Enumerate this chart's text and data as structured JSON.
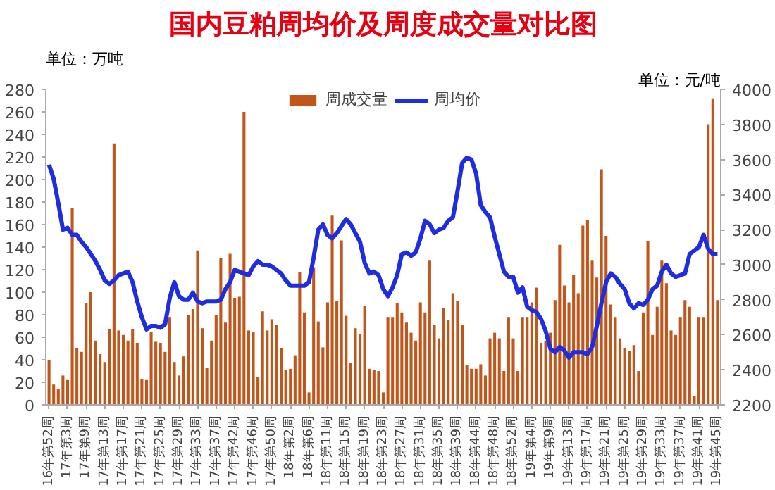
{
  "chart_data": {
    "type": "bar",
    "title": "国内豆粕周均价及周度成交量对比图",
    "ylabel": "单位：万吨",
    "y2label": "单位：元/吨",
    "categories": [
      "16年第52周",
      null,
      null,
      null,
      "17年第3周",
      null,
      null,
      null,
      "17年第9周",
      null,
      null,
      null,
      "17年第13周",
      null,
      null,
      null,
      "17年第17周",
      null,
      null,
      null,
      "17年第21周",
      null,
      null,
      null,
      "17年第25周",
      null,
      null,
      null,
      "17年第29周",
      null,
      null,
      null,
      "17年第33周",
      null,
      null,
      null,
      "17年第37周",
      null,
      null,
      null,
      "17年第42周",
      null,
      null,
      null,
      "17年第46周",
      null,
      null,
      null,
      "17年第50周",
      null,
      null,
      null,
      "18年第2周",
      null,
      null,
      null,
      "18年第6周",
      null,
      null,
      null,
      "18年第11周",
      null,
      null,
      null,
      "18年第15周",
      null,
      null,
      null,
      "18年第19周",
      null,
      null,
      null,
      "18年第23周",
      null,
      null,
      null,
      "18年第27周",
      null,
      null,
      null,
      "18年第31周",
      null,
      null,
      null,
      "18年第35周",
      null,
      null,
      null,
      "18年第39周",
      null,
      null,
      null,
      "18年第44周",
      null,
      null,
      null,
      "18年第48周",
      null,
      null,
      null,
      "18年第52周",
      null,
      null,
      null,
      "19年第4周",
      null,
      null,
      null,
      "19年第9周",
      null,
      null,
      null,
      "19年第13周",
      null,
      null,
      null,
      "19年第17周",
      null,
      null,
      null,
      "19年第21周",
      null,
      null,
      null,
      "19年第25周",
      null,
      null,
      null,
      "19年第29周",
      null,
      null,
      null,
      "19年第33周",
      null,
      null,
      null,
      "19年第37周",
      null,
      null,
      null,
      "19年第41周",
      null,
      null,
      null,
      "19年第45周"
    ],
    "series": [
      {
        "name": "周成交量",
        "color": "#c0561a",
        "values": [
          40,
          18,
          14,
          26,
          22,
          175,
          50,
          47,
          90,
          100,
          57,
          45,
          38,
          67,
          232,
          66,
          62,
          57,
          67,
          55,
          23,
          22,
          65,
          56,
          55,
          47,
          78,
          38,
          26,
          43,
          80,
          85,
          137,
          68,
          33,
          57,
          80,
          130,
          73,
          134,
          95,
          96,
          260,
          66,
          65,
          25,
          83,
          66,
          76,
          71,
          50,
          31,
          32,
          44,
          118,
          82,
          11,
          122,
          74,
          51,
          91,
          168,
          92,
          146,
          79,
          37,
          68,
          63,
          88,
          32,
          31,
          30,
          11,
          78,
          78,
          90,
          82,
          73,
          64,
          57,
          91,
          82,
          128,
          71,
          59,
          86,
          75,
          99,
          92,
          71,
          35,
          32,
          32,
          36,
          26,
          59,
          64,
          59,
          30,
          78,
          59,
          30,
          78,
          78,
          91,
          104,
          55,
          57,
          64,
          93,
          142,
          106,
          91,
          115,
          99,
          159,
          164,
          128,
          113,
          209,
          150,
          89,
          78,
          59,
          50,
          48,
          53,
          30,
          82,
          145,
          62,
          87,
          128,
          108,
          66,
          62,
          78,
          93,
          87,
          8,
          78,
          78,
          249,
          272,
          93
        ]
      },
      {
        "name": "周均价",
        "type": "line",
        "axis": "y2",
        "color": "#1f2de0",
        "values": [
          3570,
          3490,
          3350,
          3200,
          3210,
          3170,
          3170,
          3130,
          3100,
          3060,
          3020,
          2970,
          2910,
          2890,
          2910,
          2940,
          2950,
          2960,
          2900,
          2790,
          2700,
          2630,
          2650,
          2650,
          2640,
          2660,
          2810,
          2900,
          2820,
          2800,
          2800,
          2840,
          2790,
          2780,
          2790,
          2790,
          2790,
          2800,
          2860,
          2900,
          2970,
          2960,
          2950,
          2940,
          2990,
          3020,
          3000,
          3000,
          2990,
          2970,
          2950,
          2910,
          2880,
          2880,
          2880,
          2880,
          2900,
          3040,
          3200,
          3230,
          3170,
          3150,
          3180,
          3220,
          3260,
          3230,
          3180,
          3130,
          3010,
          2950,
          2960,
          2940,
          2860,
          2820,
          2870,
          2940,
          3060,
          3070,
          3050,
          3070,
          3150,
          3250,
          3230,
          3180,
          3200,
          3210,
          3250,
          3270,
          3420,
          3580,
          3610,
          3600,
          3520,
          3340,
          3300,
          3270,
          3160,
          3060,
          2960,
          2930,
          2930,
          2840,
          2870,
          2760,
          2740,
          2730,
          2690,
          2620,
          2520,
          2500,
          2530,
          2510,
          2470,
          2500,
          2500,
          2500,
          2490,
          2530,
          2650,
          2780,
          2900,
          2950,
          2930,
          2890,
          2860,
          2780,
          2750,
          2780,
          2770,
          2800,
          2860,
          2880,
          2960,
          3000,
          2950,
          2930,
          2940,
          2950,
          3060,
          3080,
          3100,
          3170,
          3090,
          3060,
          3060
        ]
      }
    ],
    "ylim": [
      0,
      280
    ],
    "yticks": [
      0,
      20,
      40,
      60,
      80,
      100,
      120,
      140,
      160,
      180,
      200,
      220,
      240,
      260,
      280
    ],
    "y2lim": [
      2200,
      4000
    ],
    "y2ticks": [
      2200,
      2400,
      2600,
      2800,
      3000,
      3200,
      3400,
      3600,
      3800,
      4000
    ],
    "legend": "top",
    "grid": false
  }
}
